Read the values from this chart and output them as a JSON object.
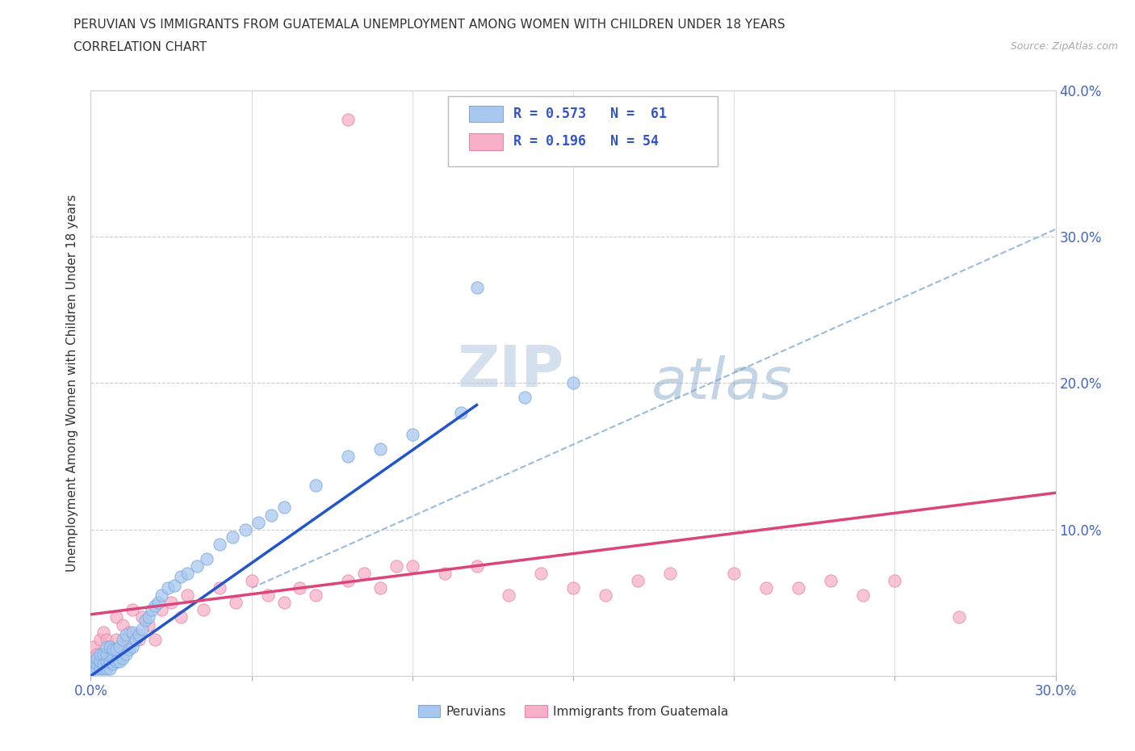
{
  "title_line1": "PERUVIAN VS IMMIGRANTS FROM GUATEMALA UNEMPLOYMENT AMONG WOMEN WITH CHILDREN UNDER 18 YEARS",
  "title_line2": "CORRELATION CHART",
  "source": "Source: ZipAtlas.com",
  "ylabel": "Unemployment Among Women with Children Under 18 years",
  "xlim": [
    0.0,
    0.3
  ],
  "ylim": [
    0.0,
    0.4
  ],
  "blue_color": "#a8c8f0",
  "blue_edge": "#7aaade",
  "pink_color": "#f8b0c8",
  "pink_edge": "#e888a8",
  "blue_line_color": "#2255cc",
  "pink_line_color": "#dd4477",
  "dashed_color": "#99bbdd",
  "legend_R1": "R = 0.573",
  "legend_N1": "N =  61",
  "legend_R2": "R = 0.196",
  "legend_N2": "N = 54",
  "legend_label1": "Peruvians",
  "legend_label2": "Immigrants from Guatemala",
  "watermark_text": "ZIPatlas",
  "background_color": "#ffffff",
  "grid_color": "#dddddd",
  "blue_scatter_x": [
    0.001,
    0.001,
    0.002,
    0.002,
    0.002,
    0.003,
    0.003,
    0.003,
    0.004,
    0.004,
    0.004,
    0.005,
    0.005,
    0.005,
    0.005,
    0.006,
    0.006,
    0.006,
    0.007,
    0.007,
    0.007,
    0.008,
    0.008,
    0.009,
    0.009,
    0.01,
    0.01,
    0.011,
    0.011,
    0.012,
    0.013,
    0.013,
    0.014,
    0.015,
    0.016,
    0.017,
    0.018,
    0.019,
    0.02,
    0.021,
    0.022,
    0.024,
    0.026,
    0.028,
    0.03,
    0.033,
    0.036,
    0.04,
    0.044,
    0.048,
    0.052,
    0.056,
    0.06,
    0.07,
    0.08,
    0.09,
    0.1,
    0.115,
    0.12,
    0.135,
    0.15
  ],
  "blue_scatter_y": [
    0.005,
    0.01,
    0.005,
    0.008,
    0.012,
    0.005,
    0.01,
    0.015,
    0.005,
    0.008,
    0.015,
    0.005,
    0.01,
    0.015,
    0.02,
    0.005,
    0.01,
    0.02,
    0.008,
    0.012,
    0.018,
    0.01,
    0.018,
    0.01,
    0.02,
    0.012,
    0.025,
    0.015,
    0.028,
    0.018,
    0.02,
    0.03,
    0.025,
    0.028,
    0.032,
    0.038,
    0.04,
    0.045,
    0.048,
    0.05,
    0.055,
    0.06,
    0.062,
    0.068,
    0.07,
    0.075,
    0.08,
    0.09,
    0.095,
    0.1,
    0.105,
    0.11,
    0.115,
    0.13,
    0.15,
    0.155,
    0.165,
    0.18,
    0.265,
    0.19,
    0.2
  ],
  "pink_scatter_x": [
    0.001,
    0.001,
    0.002,
    0.003,
    0.003,
    0.004,
    0.004,
    0.005,
    0.005,
    0.006,
    0.007,
    0.008,
    0.008,
    0.01,
    0.01,
    0.012,
    0.013,
    0.015,
    0.016,
    0.018,
    0.02,
    0.022,
    0.025,
    0.028,
    0.03,
    0.035,
    0.04,
    0.045,
    0.05,
    0.055,
    0.06,
    0.065,
    0.07,
    0.08,
    0.085,
    0.09,
    0.095,
    0.1,
    0.11,
    0.12,
    0.13,
    0.14,
    0.15,
    0.16,
    0.17,
    0.18,
    0.2,
    0.21,
    0.22,
    0.23,
    0.24,
    0.25,
    0.27,
    0.08
  ],
  "pink_scatter_y": [
    0.01,
    0.02,
    0.015,
    0.01,
    0.025,
    0.015,
    0.03,
    0.01,
    0.025,
    0.02,
    0.015,
    0.025,
    0.04,
    0.02,
    0.035,
    0.03,
    0.045,
    0.025,
    0.04,
    0.035,
    0.025,
    0.045,
    0.05,
    0.04,
    0.055,
    0.045,
    0.06,
    0.05,
    0.065,
    0.055,
    0.05,
    0.06,
    0.055,
    0.065,
    0.07,
    0.06,
    0.075,
    0.075,
    0.07,
    0.075,
    0.055,
    0.07,
    0.06,
    0.055,
    0.065,
    0.07,
    0.07,
    0.06,
    0.06,
    0.065,
    0.055,
    0.065,
    0.04,
    0.38
  ],
  "blue_trendline": [
    0.0,
    0.12,
    0.0,
    0.185
  ],
  "pink_trendline": [
    0.0,
    0.3,
    0.042,
    0.125
  ],
  "dash_trendline": [
    0.05,
    0.3,
    0.06,
    0.305
  ]
}
